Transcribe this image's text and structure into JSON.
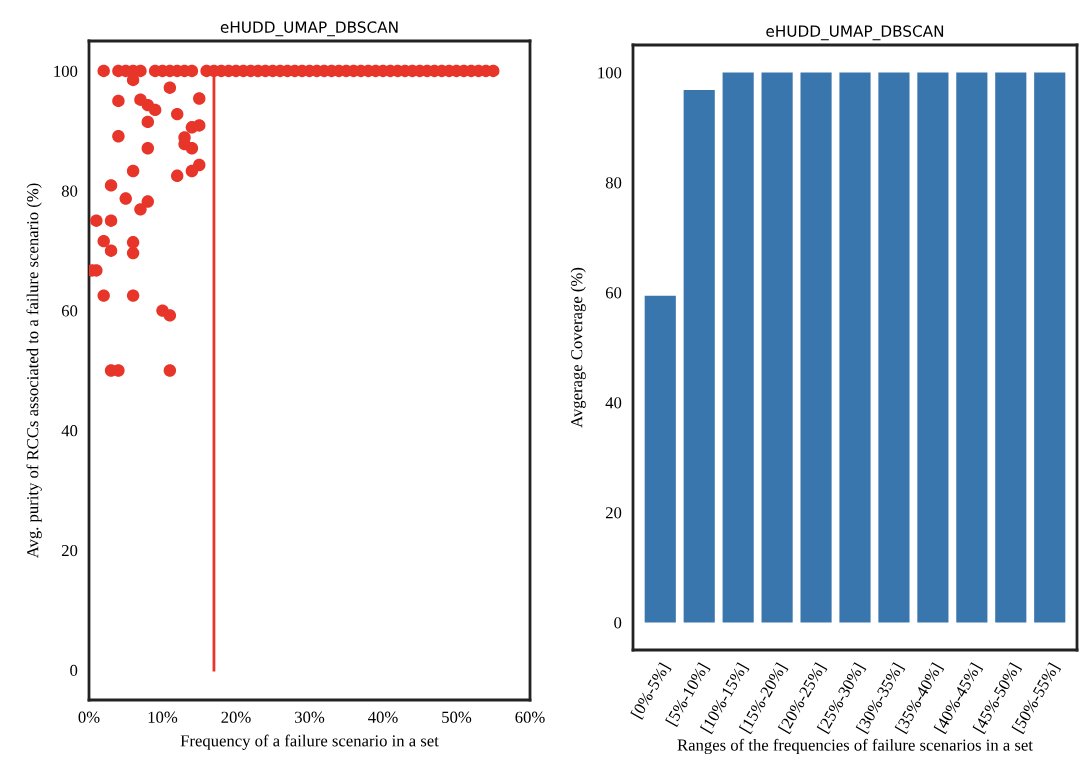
{
  "chart_data": [
    {
      "type": "scatter",
      "title": "eHUDD_UMAP_DBSCAN",
      "xlabel": "Frequency of a failure scenario in a set",
      "ylabel": "Avg. purity of RCCs associated to a failure scenario (%)",
      "marker": "circle",
      "grid": false,
      "xlim": [
        0,
        60
      ],
      "xticks": [
        {
          "value": 0,
          "label": "0%"
        },
        {
          "value": 10,
          "label": "10%"
        },
        {
          "value": 20,
          "label": "20%"
        },
        {
          "value": 30,
          "label": "30%"
        },
        {
          "value": 40,
          "label": "40%"
        },
        {
          "value": 50,
          "label": "50%"
        },
        {
          "value": 60,
          "label": "60%"
        }
      ],
      "ylim": [
        -5,
        105
      ],
      "yticks": [
        0,
        20,
        40,
        60,
        80,
        100
      ],
      "series": [
        {
          "type": "scatter",
          "color": "#e8352a",
          "x": [
            2,
            4,
            5,
            6,
            7,
            9,
            10,
            11,
            12,
            13,
            14,
            16,
            17,
            18,
            19,
            20,
            21,
            22,
            23,
            24,
            25,
            26,
            27,
            28,
            29,
            30,
            31,
            32,
            33,
            34,
            35,
            36,
            37,
            38,
            39,
            40,
            41,
            42,
            43,
            44,
            45,
            46,
            47,
            48,
            49,
            50,
            51,
            52,
            53,
            54,
            55,
            6,
            11,
            4,
            7,
            8,
            9,
            8,
            15,
            12,
            4,
            8,
            14,
            15,
            13,
            13,
            14,
            6,
            12,
            14,
            15,
            3,
            5,
            7,
            8,
            1,
            3,
            2,
            3,
            6,
            6,
            1,
            0.4,
            2,
            6,
            10,
            11,
            3,
            4,
            11
          ],
          "values": [
            100,
            100,
            100,
            100,
            100,
            100,
            100,
            100,
            100,
            100,
            100,
            100,
            100,
            100,
            100,
            100,
            100,
            100,
            100,
            100,
            100,
            100,
            100,
            100,
            100,
            100,
            100,
            100,
            100,
            100,
            100,
            100,
            100,
            100,
            100,
            100,
            100,
            100,
            100,
            100,
            100,
            100,
            100,
            100,
            100,
            100,
            100,
            100,
            100,
            100,
            100,
            98.5,
            97.2,
            95,
            95.2,
            94.3,
            93.5,
            91.5,
            95.4,
            92.8,
            89.1,
            87.1,
            90.6,
            90.9,
            88.9,
            87.8,
            87.1,
            83.3,
            82.5,
            83.3,
            84.3,
            80.9,
            78.7,
            76.9,
            78.2,
            75,
            75,
            71.6,
            70,
            71.4,
            69.6,
            66.7,
            66.7,
            62.5,
            62.5,
            60,
            59.2,
            50,
            50,
            50
          ]
        },
        {
          "type": "line",
          "color": "#e8352a",
          "marker": "none",
          "x": [
            17,
            17
          ],
          "values": [
            0,
            100
          ]
        }
      ]
    },
    {
      "type": "bar",
      "title": "eHUDD_UMAP_DBSCAN",
      "xlabel": "Ranges of the frequencies of failure scenarios in a set",
      "ylabel": "Avgerage Coverage (%)",
      "grid": false,
      "color": "#3a76ae",
      "categories": [
        "[0%-5%]",
        "[5%-10%]",
        "[10%-15%]",
        "[15%-20%]",
        "[20%-25%]",
        "[25%-30%]",
        "[30%-35%]",
        "[35%-40%]",
        "[40%-45%]",
        "[45%-50%]",
        "[50%-55%]"
      ],
      "values": [
        59.4,
        96.8,
        100,
        100,
        100,
        100,
        100,
        100,
        100,
        100,
        100
      ],
      "ylim": [
        -5,
        105
      ],
      "yticks": [
        0,
        20,
        40,
        60,
        80,
        100
      ]
    }
  ]
}
